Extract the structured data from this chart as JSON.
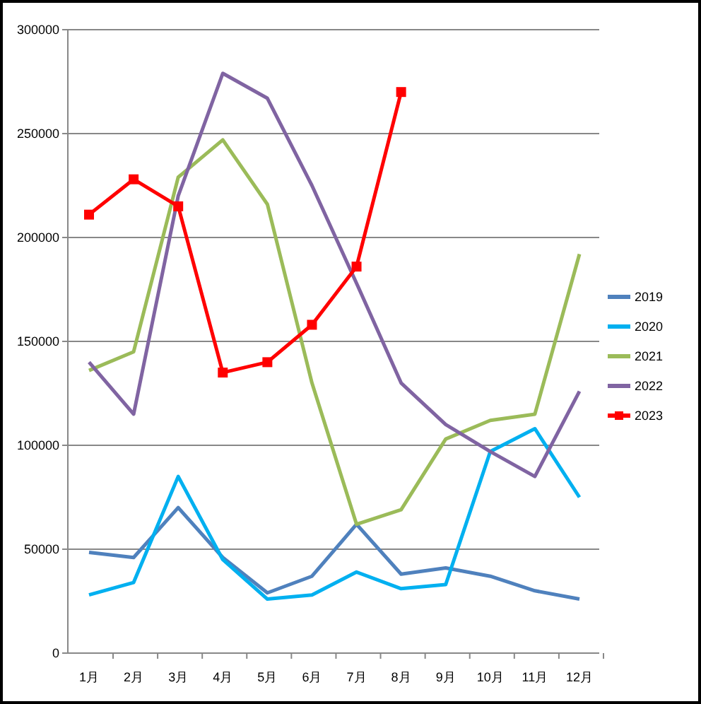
{
  "chart_data": {
    "type": "line",
    "categories": [
      "1月",
      "2月",
      "3月",
      "4月",
      "5月",
      "6月",
      "7月",
      "8月",
      "9月",
      "10月",
      "11月",
      "12月"
    ],
    "series": [
      {
        "name": "2019",
        "color": "#4f81bd",
        "values": [
          48500,
          46000,
          70000,
          46000,
          29000,
          37000,
          62000,
          38000,
          41000,
          37000,
          30000,
          26000
        ]
      },
      {
        "name": "2020",
        "color": "#00b0f0",
        "values": [
          28000,
          34000,
          85000,
          45000,
          26000,
          28000,
          39000,
          31000,
          33000,
          97000,
          108000,
          75000
        ]
      },
      {
        "name": "2021",
        "color": "#9bbb59",
        "values": [
          136000,
          145000,
          229000,
          247000,
          216000,
          130000,
          62000,
          69000,
          103000,
          112000,
          115000,
          192000
        ]
      },
      {
        "name": "2022",
        "color": "#8064a2",
        "values": [
          140000,
          115000,
          220000,
          279000,
          267000,
          225000,
          178000,
          130000,
          110000,
          97000,
          85000,
          126000
        ]
      },
      {
        "name": "2023",
        "color": "#ff0000",
        "marker": "square",
        "values": [
          211000,
          228000,
          215000,
          135000,
          140000,
          158000,
          186000,
          270000,
          null,
          null,
          null,
          null
        ]
      }
    ],
    "ylim": [
      0,
      300000
    ],
    "yticks": [
      0,
      50000,
      100000,
      150000,
      200000,
      250000,
      300000
    ],
    "grid": "y",
    "legend": "right"
  }
}
